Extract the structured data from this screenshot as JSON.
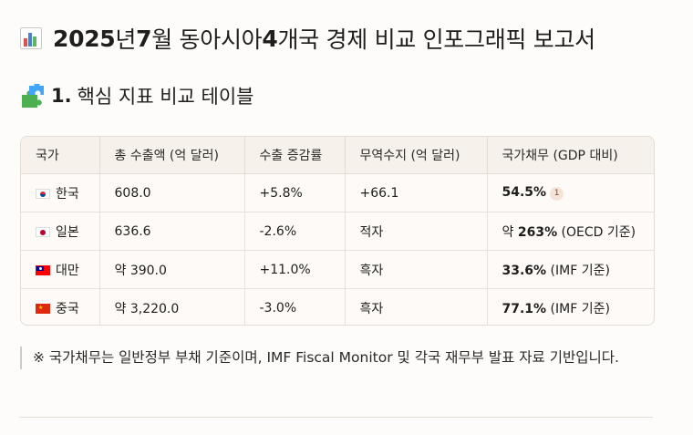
{
  "title": {
    "year": "2025",
    "year_suffix": "년 ",
    "month": "7",
    "rest_a": "월 동아시아 ",
    "count": "4",
    "rest_b": "개국 경제 비교 인포그래픽 보고서"
  },
  "section": {
    "number": "1.",
    "title": "핵심 지표 비교 테이블"
  },
  "table": {
    "headers": [
      "국가",
      "총 수출액 (억 달러)",
      "수출 증감률",
      "무역수지 (억 달러)",
      "국가채무 (GDP 대비)"
    ],
    "rows": [
      {
        "country": "한국",
        "exports": "608.0",
        "growth": "+5.8%",
        "balance": "+66.1",
        "debt_pre": "",
        "debt_bold": "54.5%",
        "debt_post": "",
        "cite": "1"
      },
      {
        "country": "일본",
        "exports": "636.6",
        "growth": "-2.6%",
        "balance": "적자",
        "debt_pre": "약 ",
        "debt_bold": "263%",
        "debt_post": " (OECD 기준)",
        "cite": ""
      },
      {
        "country": "대만",
        "exports": "약 390.0",
        "growth": "+11.0%",
        "balance": "흑자",
        "debt_pre": "",
        "debt_bold": "33.6%",
        "debt_post": " (IMF 기준)",
        "cite": ""
      },
      {
        "country": "중국",
        "exports": "약 3,220.0",
        "growth": "-3.0%",
        "balance": "흑자",
        "debt_pre": "",
        "debt_bold": "77.1%",
        "debt_post": " (IMF 기준)",
        "cite": ""
      }
    ]
  },
  "note": "※ 국가채무는 일반정부 부채 기준이며, IMF Fiscal Monitor 및 각국 재무부 발표 자료 기반입니다."
}
